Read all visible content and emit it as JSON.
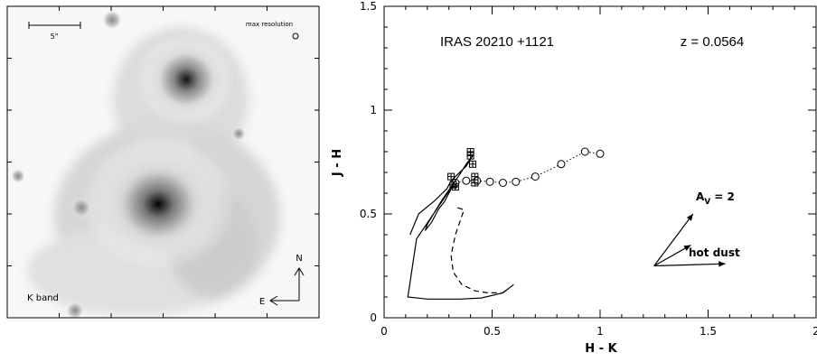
{
  "image_panel": {
    "band_label": "K band",
    "scale_bar_label": "5\"",
    "resolution_label": "max resolution",
    "compass": {
      "north": "N",
      "east": "E"
    }
  },
  "chart_data": {
    "type": "scatter",
    "title": "IRAS 20210 +1121",
    "annotation_z": "z  =  0.0564",
    "xlabel": "H  -  K",
    "ylabel": "J  -  H",
    "xlim": [
      0,
      2
    ],
    "ylim": [
      0,
      1.5
    ],
    "x_ticks": [
      "0",
      "0.5",
      "1",
      "1.5",
      "2"
    ],
    "y_ticks": [
      "0",
      "0.5",
      "1",
      "1.5"
    ],
    "series": [
      {
        "marker": "circle-dotted",
        "x": [
          0.33,
          0.38,
          0.43,
          0.49,
          0.55,
          0.61,
          0.7,
          0.82,
          0.93,
          1.0
        ],
        "y": [
          0.65,
          0.66,
          0.66,
          0.655,
          0.65,
          0.655,
          0.68,
          0.74,
          0.8,
          0.79
        ]
      },
      {
        "marker": "square",
        "x": [
          0.31,
          0.32,
          0.33,
          0.4,
          0.4,
          0.41,
          0.42,
          0.42
        ],
        "y": [
          0.68,
          0.64,
          0.63,
          0.8,
          0.78,
          0.74,
          0.68,
          0.65
        ]
      },
      {
        "marker": "line-solid",
        "x": [
          0.12,
          0.16,
          0.23,
          0.27,
          0.29,
          0.31,
          0.33,
          0.36,
          0.38,
          0.41,
          0.38,
          0.35,
          0.31,
          0.27,
          0.24,
          0.2,
          0.19,
          0.22,
          0.25,
          0.28,
          0.3,
          0.32,
          0.15,
          0.11,
          0.2,
          0.35,
          0.45,
          0.55,
          0.6
        ],
        "y": [
          0.4,
          0.5,
          0.56,
          0.6,
          0.62,
          0.66,
          0.68,
          0.71,
          0.73,
          0.78,
          0.74,
          0.69,
          0.63,
          0.57,
          0.52,
          0.45,
          0.42,
          0.46,
          0.52,
          0.56,
          0.6,
          0.64,
          0.38,
          0.1,
          0.09,
          0.09,
          0.095,
          0.12,
          0.16
        ]
      },
      {
        "marker": "line-dashed",
        "x": [
          0.34,
          0.37,
          0.33,
          0.31,
          0.32,
          0.36,
          0.42,
          0.48,
          0.55,
          0.57
        ],
        "y": [
          0.53,
          0.52,
          0.4,
          0.3,
          0.22,
          0.16,
          0.13,
          0.12,
          0.12,
          0.14
        ]
      }
    ],
    "vectors": [
      {
        "label": "A_V = 2",
        "from": [
          1.25,
          0.25
        ],
        "to": [
          1.43,
          0.5
        ]
      },
      {
        "label": "hot dust",
        "from": [
          1.25,
          0.25
        ],
        "to": [
          1.42,
          0.35
        ]
      },
      {
        "label": "",
        "from": [
          1.25,
          0.25
        ],
        "to": [
          1.58,
          0.26
        ]
      }
    ],
    "vector_label_av_main": "A",
    "vector_label_av_sub": "V",
    "vector_label_av_value": "=  2",
    "vector_label_hot_dust": "hot dust"
  }
}
